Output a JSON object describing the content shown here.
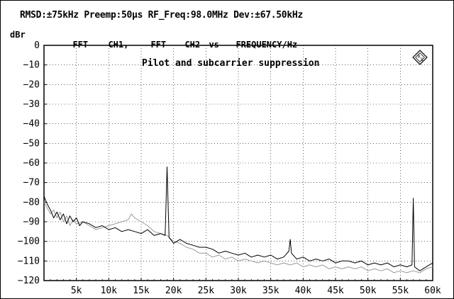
{
  "header": {
    "text": "RMSD:±75kHz Preemp:50µs RF_Freq:98.0MHz Dev:±67.50kHz"
  },
  "legend": {
    "items": [
      "FFT",
      "CH1,",
      "FFT",
      "CH2",
      "vs",
      "FREQUENCY/Hz"
    ]
  },
  "chart_data": {
    "type": "line",
    "title": "Pilot and subcarrier suppression",
    "ylabel": "dBr",
    "xlabel": "FREQUENCY/Hz",
    "xlim": [
      0,
      60000
    ],
    "ylim": [
      -120,
      0
    ],
    "x_ticks": [
      5000,
      10000,
      15000,
      20000,
      25000,
      30000,
      35000,
      40000,
      45000,
      50000,
      55000,
      60000
    ],
    "x_tick_labels": [
      "5k",
      "10k",
      "15k",
      "20k",
      "25k",
      "30k",
      "35k",
      "40k",
      "45k",
      "50k",
      "55k",
      "60k"
    ],
    "y_ticks": [
      0,
      -10,
      -20,
      -30,
      -40,
      -50,
      -60,
      -70,
      -80,
      -90,
      -100,
      -110,
      -120
    ],
    "y_tick_labels": [
      "0",
      "−10",
      "−20",
      "−30",
      "−40",
      "−50",
      "−60",
      "−70",
      "−80",
      "−90",
      "−100",
      "−110",
      "−120"
    ],
    "grid": true,
    "series": [
      {
        "name": "CH1",
        "color": "#000000",
        "points": [
          [
            0,
            -77
          ],
          [
            500,
            -81
          ],
          [
            1000,
            -84
          ],
          [
            1500,
            -88
          ],
          [
            2000,
            -85
          ],
          [
            2500,
            -89
          ],
          [
            3000,
            -86
          ],
          [
            3500,
            -91
          ],
          [
            4000,
            -87
          ],
          [
            4500,
            -90
          ],
          [
            5000,
            -88
          ],
          [
            5500,
            -92
          ],
          [
            6000,
            -90
          ],
          [
            7000,
            -91
          ],
          [
            8000,
            -93
          ],
          [
            9000,
            -92
          ],
          [
            10000,
            -94
          ],
          [
            11000,
            -93
          ],
          [
            12000,
            -95
          ],
          [
            13000,
            -94
          ],
          [
            14000,
            -95
          ],
          [
            15000,
            -96
          ],
          [
            16000,
            -94
          ],
          [
            17000,
            -97
          ],
          [
            18000,
            -96
          ],
          [
            18700,
            -97
          ],
          [
            19000,
            -62
          ],
          [
            19300,
            -98
          ],
          [
            20000,
            -101
          ],
          [
            21000,
            -99
          ],
          [
            22000,
            -101
          ],
          [
            23000,
            -102
          ],
          [
            24000,
            -103
          ],
          [
            25000,
            -103
          ],
          [
            26000,
            -104
          ],
          [
            27000,
            -106
          ],
          [
            28000,
            -105
          ],
          [
            29000,
            -106
          ],
          [
            30000,
            -107
          ],
          [
            31000,
            -106
          ],
          [
            32000,
            -108
          ],
          [
            33000,
            -107
          ],
          [
            34000,
            -108
          ],
          [
            35000,
            -107
          ],
          [
            36000,
            -109
          ],
          [
            37000,
            -108
          ],
          [
            37800,
            -105
          ],
          [
            38000,
            -99
          ],
          [
            38200,
            -106
          ],
          [
            39000,
            -109
          ],
          [
            40000,
            -108
          ],
          [
            41000,
            -110
          ],
          [
            42000,
            -109
          ],
          [
            43000,
            -110
          ],
          [
            44000,
            -109
          ],
          [
            45000,
            -111
          ],
          [
            46000,
            -110
          ],
          [
            47000,
            -110
          ],
          [
            48000,
            -111
          ],
          [
            49000,
            -110
          ],
          [
            50000,
            -112
          ],
          [
            51000,
            -111
          ],
          [
            52000,
            -112
          ],
          [
            53000,
            -111
          ],
          [
            54000,
            -113
          ],
          [
            55000,
            -112
          ],
          [
            56000,
            -113
          ],
          [
            56800,
            -112
          ],
          [
            57000,
            -78
          ],
          [
            57200,
            -113
          ],
          [
            58000,
            -115
          ],
          [
            59000,
            -113
          ],
          [
            60000,
            -111
          ]
        ]
      },
      {
        "name": "CH2",
        "color": "#9a9a9a",
        "points": [
          [
            0,
            -80
          ],
          [
            500,
            -83
          ],
          [
            1000,
            -86
          ],
          [
            1500,
            -84
          ],
          [
            2000,
            -88
          ],
          [
            2500,
            -85
          ],
          [
            3000,
            -90
          ],
          [
            3500,
            -87
          ],
          [
            4000,
            -92
          ],
          [
            4500,
            -89
          ],
          [
            5000,
            -91
          ],
          [
            6000,
            -90
          ],
          [
            7000,
            -92
          ],
          [
            8000,
            -94
          ],
          [
            9000,
            -93
          ],
          [
            10000,
            -92
          ],
          [
            11000,
            -91
          ],
          [
            12000,
            -90
          ],
          [
            13000,
            -89
          ],
          [
            13500,
            -86
          ],
          [
            14000,
            -88
          ],
          [
            15000,
            -90
          ],
          [
            16000,
            -92
          ],
          [
            17000,
            -95
          ],
          [
            18000,
            -96
          ],
          [
            19000,
            -97
          ],
          [
            20000,
            -100
          ],
          [
            21000,
            -101
          ],
          [
            22000,
            -103
          ],
          [
            23000,
            -104
          ],
          [
            24000,
            -106
          ],
          [
            25000,
            -106
          ],
          [
            26000,
            -108
          ],
          [
            27000,
            -107
          ],
          [
            28000,
            -109
          ],
          [
            29000,
            -108
          ],
          [
            30000,
            -110
          ],
          [
            31000,
            -109
          ],
          [
            32000,
            -110
          ],
          [
            33000,
            -111
          ],
          [
            34000,
            -110
          ],
          [
            35000,
            -111
          ],
          [
            36000,
            -112
          ],
          [
            37000,
            -111
          ],
          [
            38000,
            -112
          ],
          [
            39000,
            -111
          ],
          [
            40000,
            -113
          ],
          [
            41000,
            -112
          ],
          [
            42000,
            -113
          ],
          [
            43000,
            -112
          ],
          [
            44000,
            -114
          ],
          [
            45000,
            -113
          ],
          [
            46000,
            -114
          ],
          [
            47000,
            -113
          ],
          [
            48000,
            -114
          ],
          [
            49000,
            -113
          ],
          [
            50000,
            -115
          ],
          [
            51000,
            -114
          ],
          [
            52000,
            -115
          ],
          [
            53000,
            -114
          ],
          [
            54000,
            -116
          ],
          [
            55000,
            -115
          ],
          [
            56000,
            -116
          ],
          [
            57000,
            -115
          ],
          [
            58000,
            -116
          ],
          [
            59000,
            -114
          ],
          [
            60000,
            -113
          ]
        ]
      }
    ]
  }
}
